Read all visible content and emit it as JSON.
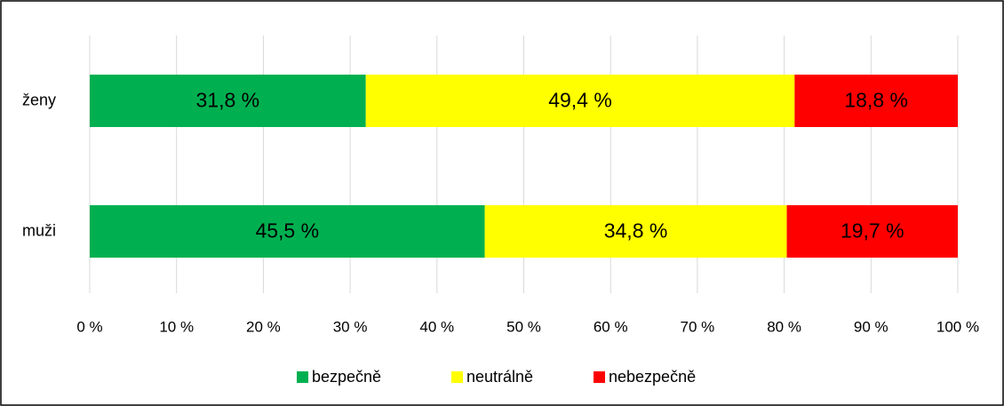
{
  "chart_data": {
    "type": "bar",
    "orientation": "horizontal",
    "stacked": true,
    "categories": [
      "ženy",
      "muži"
    ],
    "series": [
      {
        "name": "bezpečně",
        "color": "#00b050",
        "values": [
          31.8,
          45.5
        ],
        "value_labels": [
          "31,8 %",
          "45,5 %"
        ]
      },
      {
        "name": "neutrálně",
        "color": "#ffff00",
        "values": [
          49.4,
          34.8
        ],
        "value_labels": [
          "49,4 %",
          "34,8 %"
        ]
      },
      {
        "name": "nebezpečně",
        "color": "#ff0000",
        "values": [
          18.8,
          19.7
        ],
        "value_labels": [
          "18,8 %",
          "19,7 %"
        ]
      }
    ],
    "xlim": [
      0,
      100
    ],
    "xticks": [
      {
        "value": 0,
        "label": "0 %"
      },
      {
        "value": 10,
        "label": "10 %"
      },
      {
        "value": 20,
        "label": "20 %"
      },
      {
        "value": 30,
        "label": "30 %"
      },
      {
        "value": 40,
        "label": "40 %"
      },
      {
        "value": 50,
        "label": "50 %"
      },
      {
        "value": 60,
        "label": "60 %"
      },
      {
        "value": 70,
        "label": "70 %"
      },
      {
        "value": 80,
        "label": "80 %"
      },
      {
        "value": 90,
        "label": "90 %"
      },
      {
        "value": 100,
        "label": "100 %"
      }
    ],
    "grid": true,
    "legend": "bottom"
  }
}
